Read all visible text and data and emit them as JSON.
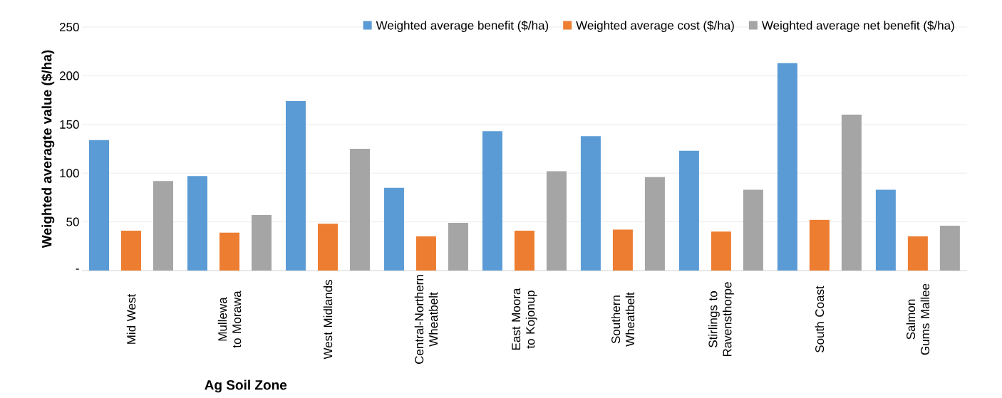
{
  "chart_data": {
    "type": "bar",
    "xlabel": "Ag Soil Zone",
    "ylabel": "Weighted averagte value ($/ha)",
    "categories": [
      "Mid West",
      "Mullewa to Morawa",
      "West Midlands",
      "Central-Northern Wheatbelt",
      "East Moora to Kojonup",
      "Southern Wheatbelt",
      "Stirlings to Ravensthorpe",
      "South Coast",
      "Salmon Gums Mallee"
    ],
    "series": [
      {
        "name": "Weighted average benefit ($/ha)",
        "color": "#5b9bd5",
        "values": [
          134,
          97,
          174,
          85,
          143,
          138,
          123,
          213,
          83
        ]
      },
      {
        "name": "Weighted average cost ($/ha)",
        "color": "#ed7d31",
        "values": [
          41,
          39,
          48,
          35,
          41,
          42,
          40,
          52,
          35
        ]
      },
      {
        "name": "Weighted average net benefit ($/ha)",
        "color": "#a5a5a5",
        "values": [
          92,
          57,
          125,
          49,
          102,
          96,
          83,
          160,
          46
        ]
      }
    ],
    "ylim": [
      0,
      250
    ],
    "yticks": [
      {
        "value": 0,
        "label": "-"
      },
      50,
      100,
      150,
      200,
      250
    ],
    "grid": "y",
    "legend": "top"
  }
}
